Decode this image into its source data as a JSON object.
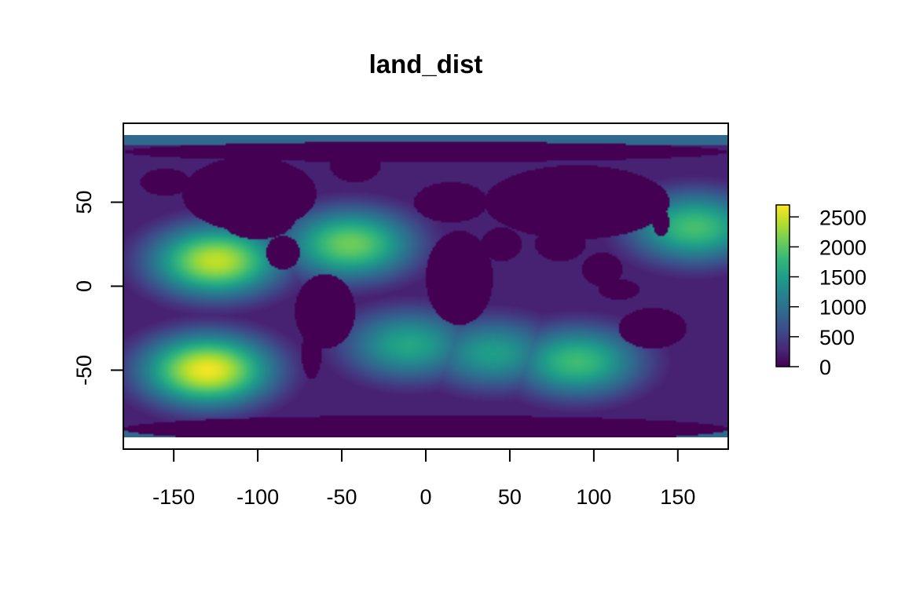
{
  "chart_data": {
    "type": "heatmap",
    "title": "land_dist",
    "xlabel": "",
    "ylabel": "",
    "xlim": [
      -180,
      180
    ],
    "ylim": [
      -97,
      97
    ],
    "data_extent": {
      "x": [
        -180,
        180
      ],
      "y": [
        -90,
        90
      ]
    },
    "x_ticks": [
      -150,
      -100,
      -50,
      0,
      50,
      100,
      150
    ],
    "y_ticks": [
      -50,
      0,
      50
    ],
    "legend": {
      "position": "right",
      "min": 0,
      "max": 2700,
      "ticks": [
        0,
        500,
        1000,
        1500,
        2000,
        2500
      ],
      "palette": [
        "#440154",
        "#482878",
        "#3E4A89",
        "#31688E",
        "#26828E",
        "#1F9E89",
        "#35B779",
        "#6DCD59",
        "#B4DE2C",
        "#FDE725"
      ]
    },
    "hotspots": [
      {
        "lon": -130,
        "lat": -50,
        "value": 2650
      },
      {
        "lon": -125,
        "lat": 15,
        "value": 2450
      },
      {
        "lon": -45,
        "lat": 25,
        "value": 2100
      },
      {
        "lon": 160,
        "lat": 35,
        "value": 1900
      },
      {
        "lon": 90,
        "lat": -45,
        "value": 1850
      },
      {
        "lon": -10,
        "lat": -35,
        "value": 1600
      },
      {
        "lon": 40,
        "lat": -40,
        "value": 1500
      }
    ],
    "grid": false
  }
}
